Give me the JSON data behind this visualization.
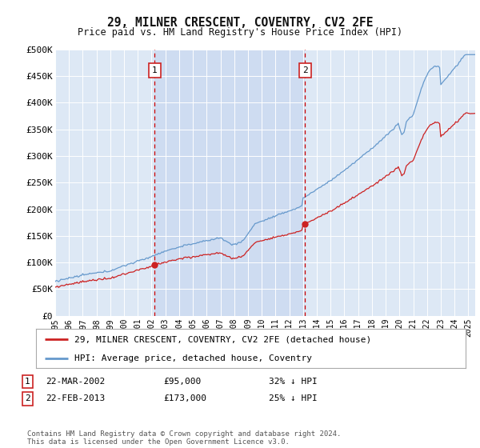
{
  "title": "29, MILNER CRESCENT, COVENTRY, CV2 2FE",
  "subtitle": "Price paid vs. HM Land Registry's House Price Index (HPI)",
  "background_color": "#ffffff",
  "plot_bg_color": "#dde8f5",
  "shade_color": "#c8d8f0",
  "hpi_color": "#6699cc",
  "price_color": "#cc2222",
  "vline_color": "#cc0000",
  "ylim": [
    0,
    500000
  ],
  "yticks": [
    0,
    50000,
    100000,
    150000,
    200000,
    250000,
    300000,
    350000,
    400000,
    450000,
    500000
  ],
  "ytick_labels": [
    "£0",
    "£50K",
    "£100K",
    "£150K",
    "£200K",
    "£250K",
    "£300K",
    "£350K",
    "£400K",
    "£450K",
    "£500K"
  ],
  "sale1_date": 2002.22,
  "sale1_price": 95000,
  "sale2_date": 2013.14,
  "sale2_price": 173000,
  "xmin": 1995.0,
  "xmax": 2025.5,
  "legend_line1": "29, MILNER CRESCENT, COVENTRY, CV2 2FE (detached house)",
  "legend_line2": "HPI: Average price, detached house, Coventry",
  "table_row1": [
    "1",
    "22-MAR-2002",
    "£95,000",
    "32% ↓ HPI"
  ],
  "table_row2": [
    "2",
    "22-FEB-2013",
    "£173,000",
    "25% ↓ HPI"
  ],
  "footer": "Contains HM Land Registry data © Crown copyright and database right 2024.\nThis data is licensed under the Open Government Licence v3.0."
}
